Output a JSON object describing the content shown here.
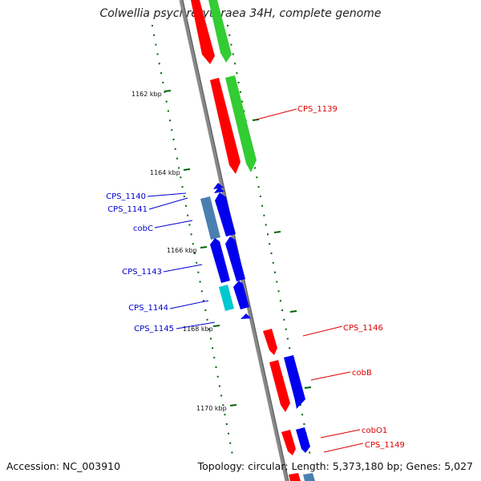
{
  "title": "Colwellia psychrerythraea 34H, complete genome",
  "footer": {
    "accession": "Accession: NC_003910",
    "summary": "Topology: circular; Length: 5,373,180 bp; Genes: 5,027"
  },
  "colors": {
    "strand_red": "#ff0000",
    "strand_green": "#33cc33",
    "strand_blue": "#0000ee",
    "cyan": "#00c8d0",
    "steel": "#4a80b0",
    "backbone": "#888888",
    "ticks": "#006600",
    "label_red": "#dd0000",
    "label_blue": "#0000cc"
  },
  "kbp_ticks": [
    "1162 kbp",
    "1164 kbp",
    "1166 kbp",
    "1168 kbp",
    "1170 kbp"
  ],
  "gene_labels": [
    {
      "text": "CPS_1139",
      "strand": "forward"
    },
    {
      "text": "CPS_1140",
      "strand": "reverse"
    },
    {
      "text": "CPS_1141",
      "strand": "reverse"
    },
    {
      "text": "cobC",
      "strand": "reverse"
    },
    {
      "text": "CPS_1143",
      "strand": "reverse"
    },
    {
      "text": "CPS_1144",
      "strand": "reverse"
    },
    {
      "text": "CPS_1145",
      "strand": "reverse"
    },
    {
      "text": "CPS_1146",
      "strand": "forward"
    },
    {
      "text": "cobB",
      "strand": "forward"
    },
    {
      "text": "cobO1",
      "strand": "forward"
    },
    {
      "text": "CPS_1149",
      "strand": "forward"
    }
  ]
}
